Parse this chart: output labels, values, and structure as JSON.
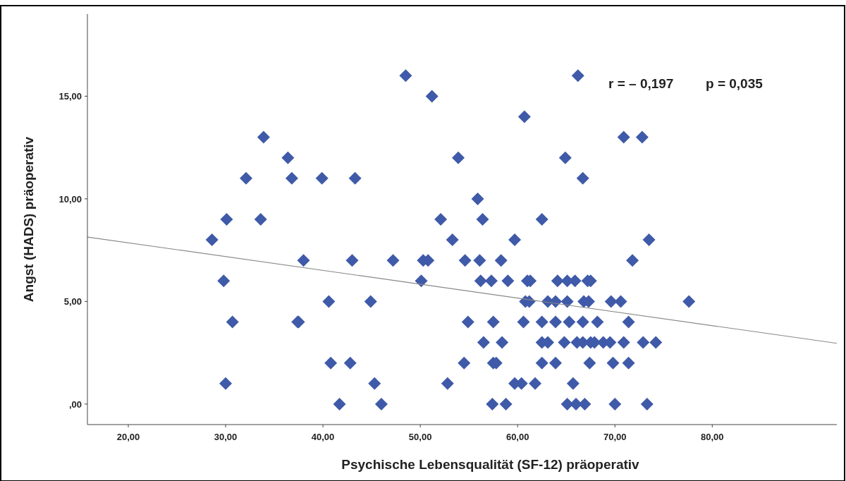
{
  "chart_data": {
    "type": "scatter",
    "xlabel": "Psychische Lebensqualität (SF-12) präoperativ",
    "ylabel": "Angst (HADS) präoperativ",
    "xlim": [
      15.8,
      92.8
    ],
    "ylim": [
      -1,
      19
    ],
    "xticks": [
      {
        "value": 20,
        "label": "20,00"
      },
      {
        "value": 30,
        "label": "30,00"
      },
      {
        "value": 40,
        "label": "40,00"
      },
      {
        "value": 50,
        "label": "50,00"
      },
      {
        "value": 60,
        "label": "60,00"
      },
      {
        "value": 70,
        "label": "70,00"
      },
      {
        "value": 80,
        "label": "80,00"
      }
    ],
    "yticks": [
      {
        "value": 0,
        "label": ",00"
      },
      {
        "value": 5,
        "label": "5,00"
      },
      {
        "value": 10,
        "label": "10,00"
      },
      {
        "value": 15,
        "label": "15,00"
      }
    ],
    "grid": false,
    "annotations": [
      "r = – 0,197",
      "p = 0,035"
    ],
    "series": [
      {
        "marker": "diamond",
        "color": "#3f5aa8",
        "x": [
          48.5,
          66.2,
          51.2,
          60.7,
          33.9,
          70.9,
          72.8,
          36.4,
          53.9,
          64.9,
          32.1,
          36.8,
          39.9,
          43.3,
          66.7,
          55.9,
          30.1,
          33.6,
          52.1,
          56.4,
          62.5,
          28.6,
          53.3,
          59.7,
          73.5,
          38.0,
          43.0,
          47.2,
          50.3,
          50.8,
          54.6,
          56.1,
          58.3,
          71.8,
          29.8,
          50.1,
          56.2,
          57.3,
          59.0,
          61.0,
          61.3,
          64.1,
          65.1,
          65.9,
          67.5,
          67.2,
          40.6,
          44.9,
          60.8,
          61.2,
          63.1,
          63.9,
          65.1,
          66.8,
          67.3,
          69.6,
          70.6,
          77.6,
          30.7,
          37.4,
          37.5,
          54.9,
          57.5,
          60.6,
          62.5,
          63.9,
          65.3,
          66.7,
          68.2,
          71.4,
          56.5,
          58.4,
          62.5,
          63.1,
          64.8,
          66.1,
          66.7,
          67.5,
          67.9,
          68.8,
          69.5,
          70.9,
          72.9,
          74.2,
          40.8,
          42.8,
          54.5,
          57.5,
          57.8,
          62.5,
          63.9,
          67.4,
          69.8,
          71.4,
          30.0,
          45.3,
          52.8,
          59.7,
          60.4,
          61.8,
          65.7,
          41.7,
          46.0,
          57.4,
          58.8,
          65.1,
          66.0,
          66.9,
          70.0,
          73.3
        ],
        "values": [
          16,
          16,
          15,
          14,
          13,
          13,
          13,
          12,
          12,
          12,
          11,
          11,
          11,
          11,
          11,
          10,
          9,
          9,
          9,
          9,
          9,
          8,
          8,
          8,
          8,
          7,
          7,
          7,
          7,
          7,
          7,
          7,
          7,
          7,
          6,
          6,
          6,
          6,
          6,
          6,
          6,
          6,
          6,
          6,
          6,
          6,
          5,
          5,
          5,
          5,
          5,
          5,
          5,
          5,
          5,
          5,
          5,
          5,
          4,
          4,
          4,
          4,
          4,
          4,
          4,
          4,
          4,
          4,
          4,
          4,
          3,
          3,
          3,
          3,
          3,
          3,
          3,
          3,
          3,
          3,
          3,
          3,
          3,
          3,
          2,
          2,
          2,
          2,
          2,
          2,
          2,
          2,
          2,
          2,
          1,
          1,
          1,
          1,
          1,
          1,
          1,
          0,
          0,
          0,
          0,
          0,
          0,
          0,
          0,
          0
        ]
      },
      {
        "type": "line",
        "color": "#888888",
        "x": [
          15.8,
          92.8
        ],
        "values": [
          8.14,
          2.96
        ]
      }
    ]
  }
}
